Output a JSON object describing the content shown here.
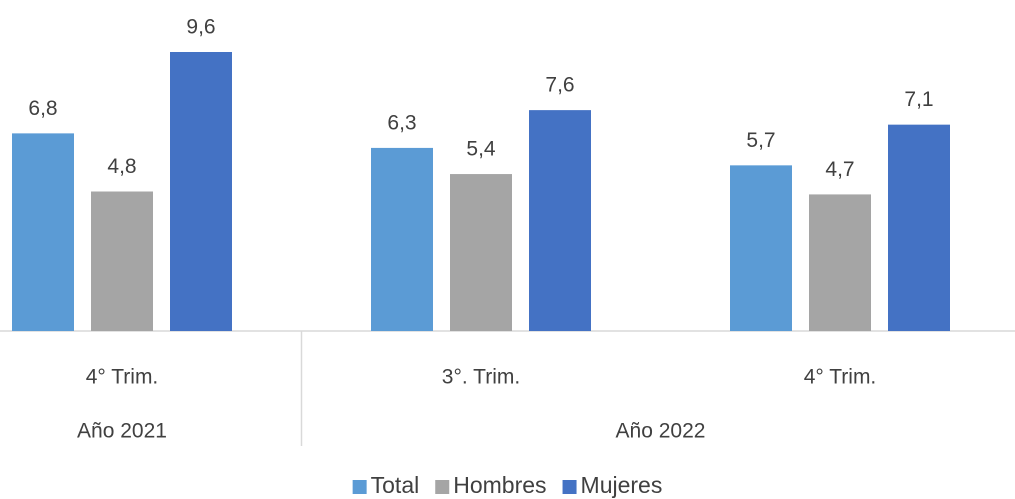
{
  "chart_data": {
    "type": "bar",
    "category_groups": [
      {
        "name": "Año 2021",
        "categories": [
          "4° Trim."
        ]
      },
      {
        "name": "Año 2022",
        "categories": [
          "3°. Trim.",
          "4° Trim."
        ]
      }
    ],
    "series": [
      {
        "name": "Total",
        "color": "#5b9bd5",
        "values": [
          6.8,
          6.3,
          5.7
        ],
        "value_labels": [
          "6,8",
          "6,3",
          "5,7"
        ]
      },
      {
        "name": "Hombres",
        "color": "#a5a5a5",
        "values": [
          4.8,
          5.4,
          4.7
        ],
        "value_labels": [
          "4,8",
          "5,4",
          "4,7"
        ]
      },
      {
        "name": "Mujeres",
        "color": "#4472c4",
        "values": [
          9.6,
          7.6,
          7.1
        ],
        "value_labels": [
          "9,6",
          "7,6",
          "7,1"
        ]
      }
    ],
    "legend": "bottom"
  }
}
